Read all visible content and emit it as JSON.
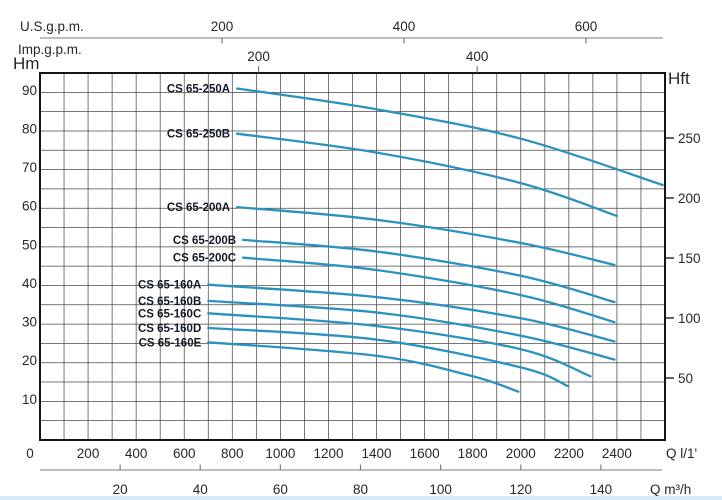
{
  "page": {
    "background": "#ffffff",
    "bottom_strip_color": "#d9e8f5"
  },
  "chart_data": {
    "type": "line",
    "title": "",
    "description": "Pump performance curves: head (Hm / Hft) versus flow (Q l/1', Q m³/h, U.S.g.p.m., Imp.g.p.m.)",
    "legend_position": "inline-labels",
    "grid": true,
    "axes": {
      "left": {
        "label": "Hm",
        "ticks": [
          90,
          80,
          70,
          60,
          50,
          40,
          30,
          20,
          10
        ],
        "range": [
          0,
          95
        ],
        "grid_step": 5
      },
      "right": {
        "label": "Hft",
        "ticks": [
          250,
          200,
          150,
          100,
          50
        ]
      },
      "bottom": {
        "label": "Q l/1'",
        "ticks": [
          0,
          200,
          400,
          600,
          800,
          1000,
          1200,
          1400,
          1600,
          1800,
          2000,
          2200,
          2400
        ],
        "range": [
          0,
          2600
        ],
        "grid_step": 100
      },
      "bottom_secondary": {
        "label": "Q m³/h",
        "ticks": [
          20,
          40,
          60,
          80,
          100,
          120,
          140
        ]
      },
      "top": {
        "label": "U.S.g.p.m.",
        "ticks": [
          200,
          400,
          600
        ]
      },
      "top_secondary": {
        "label": "Imp.g.p.m.",
        "ticks": [
          200,
          400
        ]
      }
    },
    "series": [
      {
        "name": "CS 65-250A",
        "points": [
          [
            820,
            91.0
          ],
          [
            1410,
            85.5
          ],
          [
            2000,
            78.0
          ],
          [
            2590,
            66.0
          ]
        ]
      },
      {
        "name": "CS 65-250B",
        "points": [
          [
            820,
            79.3
          ],
          [
            1410,
            74.3
          ],
          [
            2000,
            66.5
          ],
          [
            2400,
            58.0
          ]
        ]
      },
      {
        "name": "CS 65-200A",
        "points": [
          [
            820,
            60.3
          ],
          [
            1400,
            57.0
          ],
          [
            2000,
            51.0
          ],
          [
            2390,
            45.3
          ]
        ]
      },
      {
        "name": "CS 65-200B",
        "points": [
          [
            845,
            51.8
          ],
          [
            1400,
            48.8
          ],
          [
            2000,
            42.5
          ],
          [
            2390,
            35.7
          ]
        ]
      },
      {
        "name": "CS 65-200C",
        "points": [
          [
            845,
            47.2
          ],
          [
            1400,
            44.0
          ],
          [
            2000,
            37.5
          ],
          [
            2390,
            30.5
          ]
        ]
      },
      {
        "name": "CS 65-160A",
        "points": [
          [
            700,
            40.2
          ],
          [
            1400,
            37.0
          ],
          [
            2000,
            31.5
          ],
          [
            2390,
            25.5
          ]
        ]
      },
      {
        "name": "CS 65-160B",
        "points": [
          [
            700,
            36.0
          ],
          [
            1400,
            33.0
          ],
          [
            2000,
            27.0
          ],
          [
            2390,
            20.8
          ]
        ]
      },
      {
        "name": "CS 65-160C",
        "points": [
          [
            700,
            32.8
          ],
          [
            1400,
            29.5
          ],
          [
            2000,
            23.5
          ],
          [
            2290,
            16.5
          ]
        ]
      },
      {
        "name": "CS 65-160D",
        "points": [
          [
            700,
            29.0
          ],
          [
            1400,
            26.0
          ],
          [
            2000,
            18.8
          ],
          [
            2195,
            14.0
          ]
        ]
      },
      {
        "name": "CS 65-160E",
        "points": [
          [
            700,
            25.3
          ],
          [
            1400,
            21.8
          ],
          [
            1800,
            16.5
          ],
          [
            1990,
            12.5
          ]
        ]
      }
    ],
    "colors": {
      "curve": "#2b92c0",
      "grid": "#4a4a4a",
      "border": "#151515",
      "axis_line": "#7d7d7d",
      "tick_text": "#272727",
      "curve_label": "#131a24"
    }
  }
}
